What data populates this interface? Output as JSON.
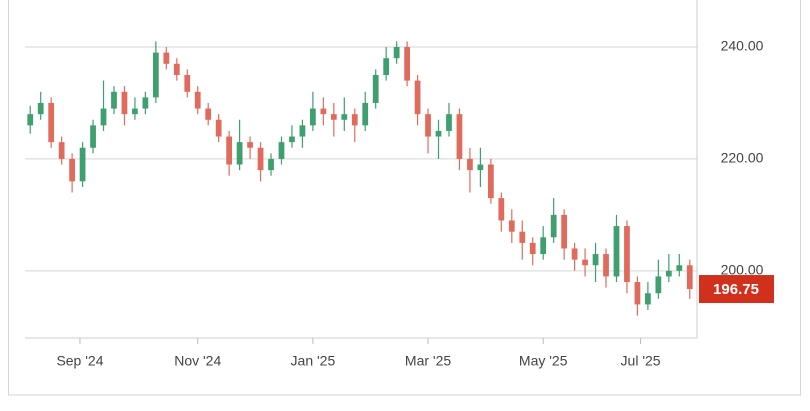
{
  "chart_data": {
    "type": "candlestick",
    "up_color": "#3f9f6f",
    "down_color": "#e06b5c",
    "open": [
      226,
      228,
      230,
      223,
      220,
      216,
      222,
      226,
      229,
      232,
      228,
      229,
      231,
      239,
      237,
      235,
      232,
      229,
      227,
      224,
      219,
      223,
      222,
      218,
      220,
      223,
      224,
      226,
      229,
      228,
      227,
      228,
      226,
      230,
      235,
      238,
      240,
      234,
      228,
      224,
      225,
      228,
      220,
      218,
      219,
      213,
      209,
      207,
      205,
      203,
      206,
      210,
      204,
      202,
      201,
      203,
      199,
      208,
      198,
      194,
      196,
      199,
      200,
      201
    ],
    "high": [
      229.5,
      232,
      231,
      224,
      221,
      223,
      227,
      234,
      233,
      233,
      231,
      232,
      241,
      240,
      238,
      236,
      233,
      230,
      228,
      225,
      227,
      224,
      223,
      221,
      224,
      226,
      227,
      232,
      231,
      230,
      231,
      229,
      232,
      236,
      240,
      241,
      241,
      235,
      229,
      227,
      230,
      229,
      222,
      222,
      220,
      214,
      211,
      209,
      206,
      208,
      213,
      211,
      205,
      204,
      205,
      204,
      210,
      209,
      199,
      198,
      202,
      203,
      203,
      202
    ],
    "low": [
      224.5,
      227,
      222,
      219,
      214,
      215,
      221,
      225,
      228,
      226,
      227,
      228,
      230,
      236,
      234,
      231,
      228,
      226,
      223,
      217,
      218,
      220,
      216,
      217,
      219,
      222,
      222,
      225,
      226,
      224,
      225,
      223,
      225,
      229,
      234,
      237,
      233,
      226,
      221,
      220,
      224,
      218,
      214,
      215,
      212,
      207,
      205,
      202,
      201,
      202,
      205,
      202,
      200,
      199,
      198,
      197,
      198,
      196,
      192,
      193,
      195,
      198,
      199,
      195
    ],
    "close": [
      228,
      230,
      223,
      220,
      216,
      222,
      226,
      229,
      232,
      228,
      229,
      231,
      239,
      237,
      235,
      232,
      229,
      227,
      224,
      219,
      223,
      222,
      218,
      220,
      223,
      224,
      226,
      229,
      228,
      227,
      228,
      226,
      230,
      235,
      238,
      240,
      234,
      228,
      224,
      225,
      228,
      220,
      218,
      219,
      213,
      209,
      207,
      205,
      203,
      206,
      210,
      204,
      202,
      201,
      203,
      199,
      208,
      198,
      194,
      196,
      199,
      200,
      201,
      196.75
    ],
    "xlim": [
      0,
      64
    ],
    "xticks": [
      {
        "value": 5.25,
        "label": "Sep '24"
      },
      {
        "value": 16.5,
        "label": "Nov '24"
      },
      {
        "value": 27.5,
        "label": "Jan '25"
      },
      {
        "value": 38.5,
        "label": "Mar '25"
      },
      {
        "value": 49.5,
        "label": "May '25"
      },
      {
        "value": 58.8,
        "label": "Jul '25"
      }
    ],
    "ylim": [
      188,
      248.4
    ],
    "yticks": [
      {
        "value": 200,
        "label": "200.00"
      },
      {
        "value": 220,
        "label": "220.00"
      },
      {
        "value": 240,
        "label": "240.00"
      }
    ],
    "grid": true,
    "last_price": 196.75,
    "last_price_color": "#d0301c"
  }
}
